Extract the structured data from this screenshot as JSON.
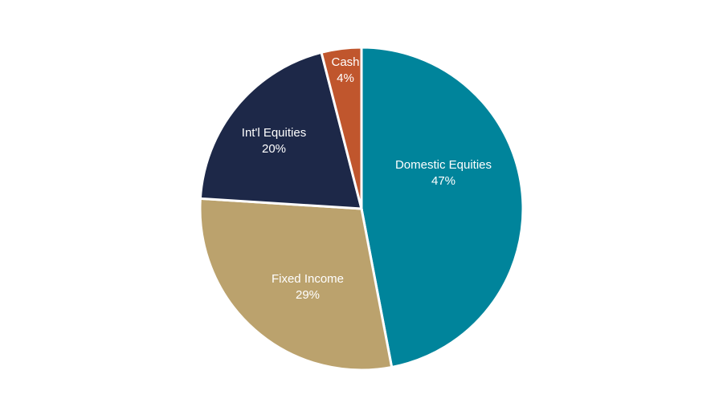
{
  "chart_data": {
    "type": "pie",
    "start": "top",
    "direction": "clockwise",
    "slices": [
      {
        "name": "Domestic Equities",
        "value": 47,
        "value_label": "47%",
        "color": "#00849B"
      },
      {
        "name": "Fixed Income",
        "value": 29,
        "value_label": "29%",
        "color": "#BBA26D"
      },
      {
        "name": "Int'l Equities",
        "value": 20,
        "value_label": "20%",
        "color": "#1D2848"
      },
      {
        "name": "Cash",
        "value": 4,
        "value_label": "4%",
        "color": "#C0562D"
      }
    ],
    "legend": "none",
    "separator_color": "#ffffff"
  }
}
